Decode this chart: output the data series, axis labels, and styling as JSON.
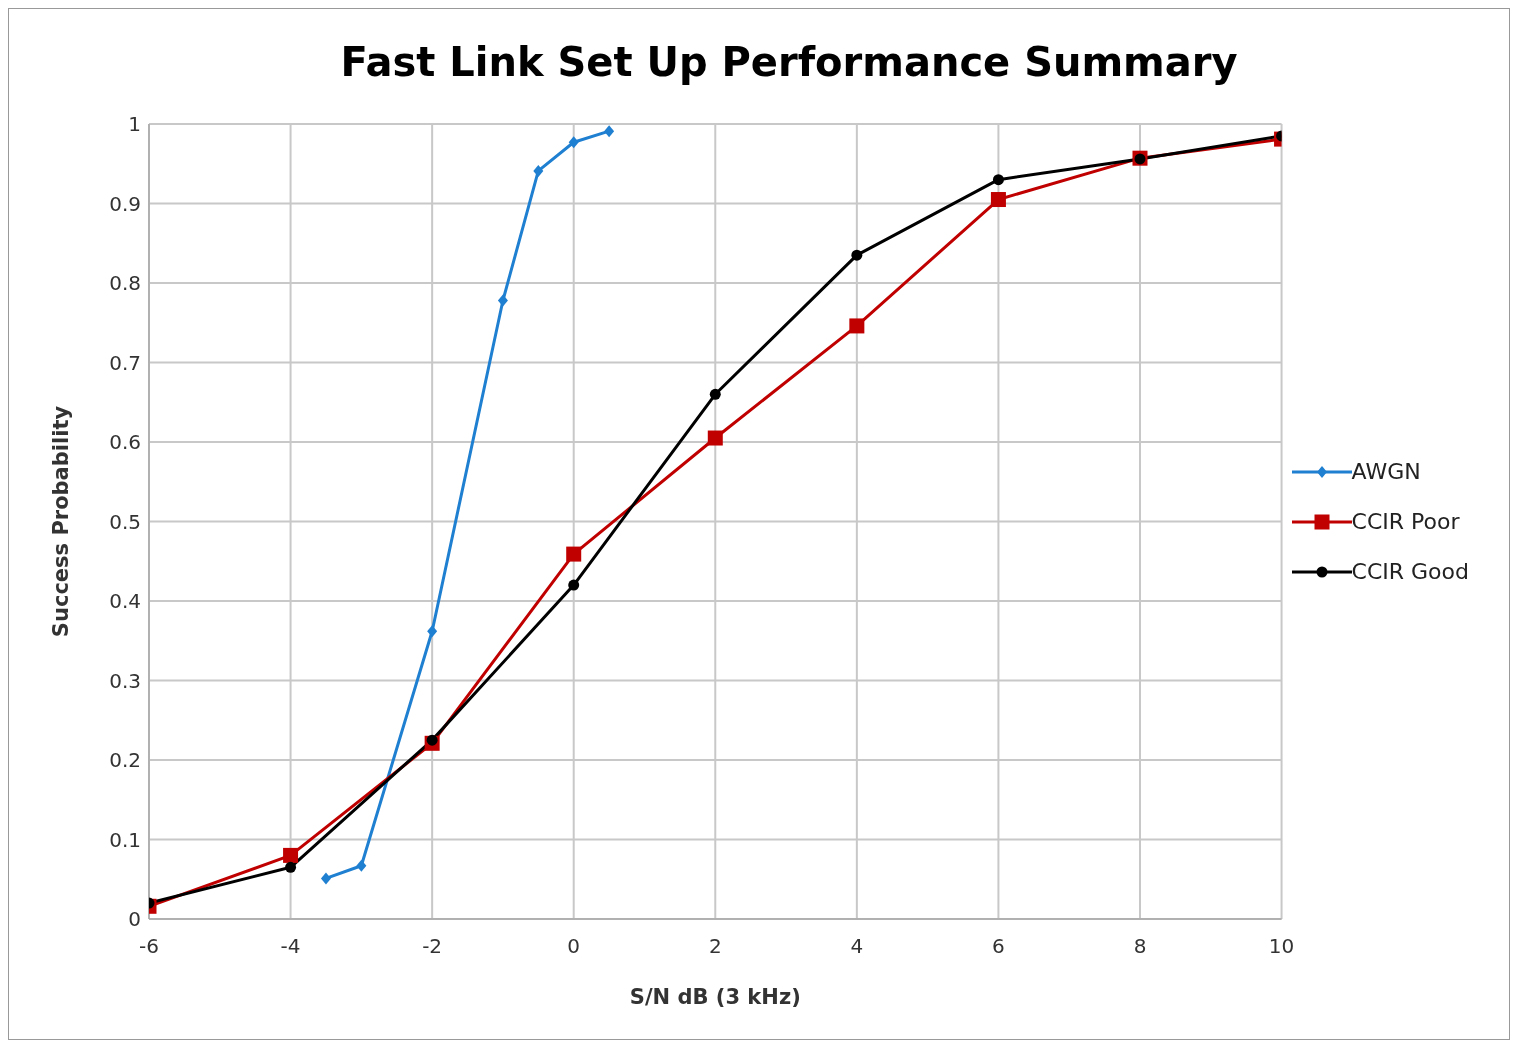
{
  "chart_data": {
    "type": "line",
    "title": "Fast Link Set Up Performance Summary",
    "xlabel": "S/N dB (3 kHz)",
    "ylabel": "Success Probability",
    "xlim": [
      -6,
      10
    ],
    "xticks": [
      -6,
      -4,
      -2,
      0,
      2,
      4,
      6,
      8,
      10
    ],
    "ylim": [
      0,
      1
    ],
    "yticks": [
      0,
      0.1,
      0.2,
      0.3,
      0.4,
      0.5,
      0.6,
      0.7,
      0.8,
      0.9,
      1
    ],
    "grid": true,
    "legend": "right",
    "series": [
      {
        "name": "AWGN",
        "color": "#1f7fd0",
        "marker": "diamond",
        "x": [
          -3.5,
          -3,
          -2,
          -1,
          -0.5,
          0,
          0.5
        ],
        "values": [
          0.051,
          0.067,
          0.362,
          0.778,
          0.941,
          0.977,
          0.991
        ]
      },
      {
        "name": "CCIR Poor",
        "color": "#c00000",
        "marker": "square",
        "x": [
          -6,
          -4,
          -2,
          0,
          2,
          4,
          6,
          8,
          10
        ],
        "values": [
          0.016,
          0.08,
          0.221,
          0.459,
          0.605,
          0.746,
          0.905,
          0.957,
          0.981
        ]
      },
      {
        "name": "CCIR Good",
        "color": "#000000",
        "marker": "circle",
        "x": [
          -6,
          -4,
          -2,
          0,
          2,
          4,
          6,
          8,
          10
        ],
        "values": [
          0.02,
          0.065,
          0.225,
          0.42,
          0.66,
          0.835,
          0.93,
          0.956,
          0.985
        ]
      }
    ]
  }
}
